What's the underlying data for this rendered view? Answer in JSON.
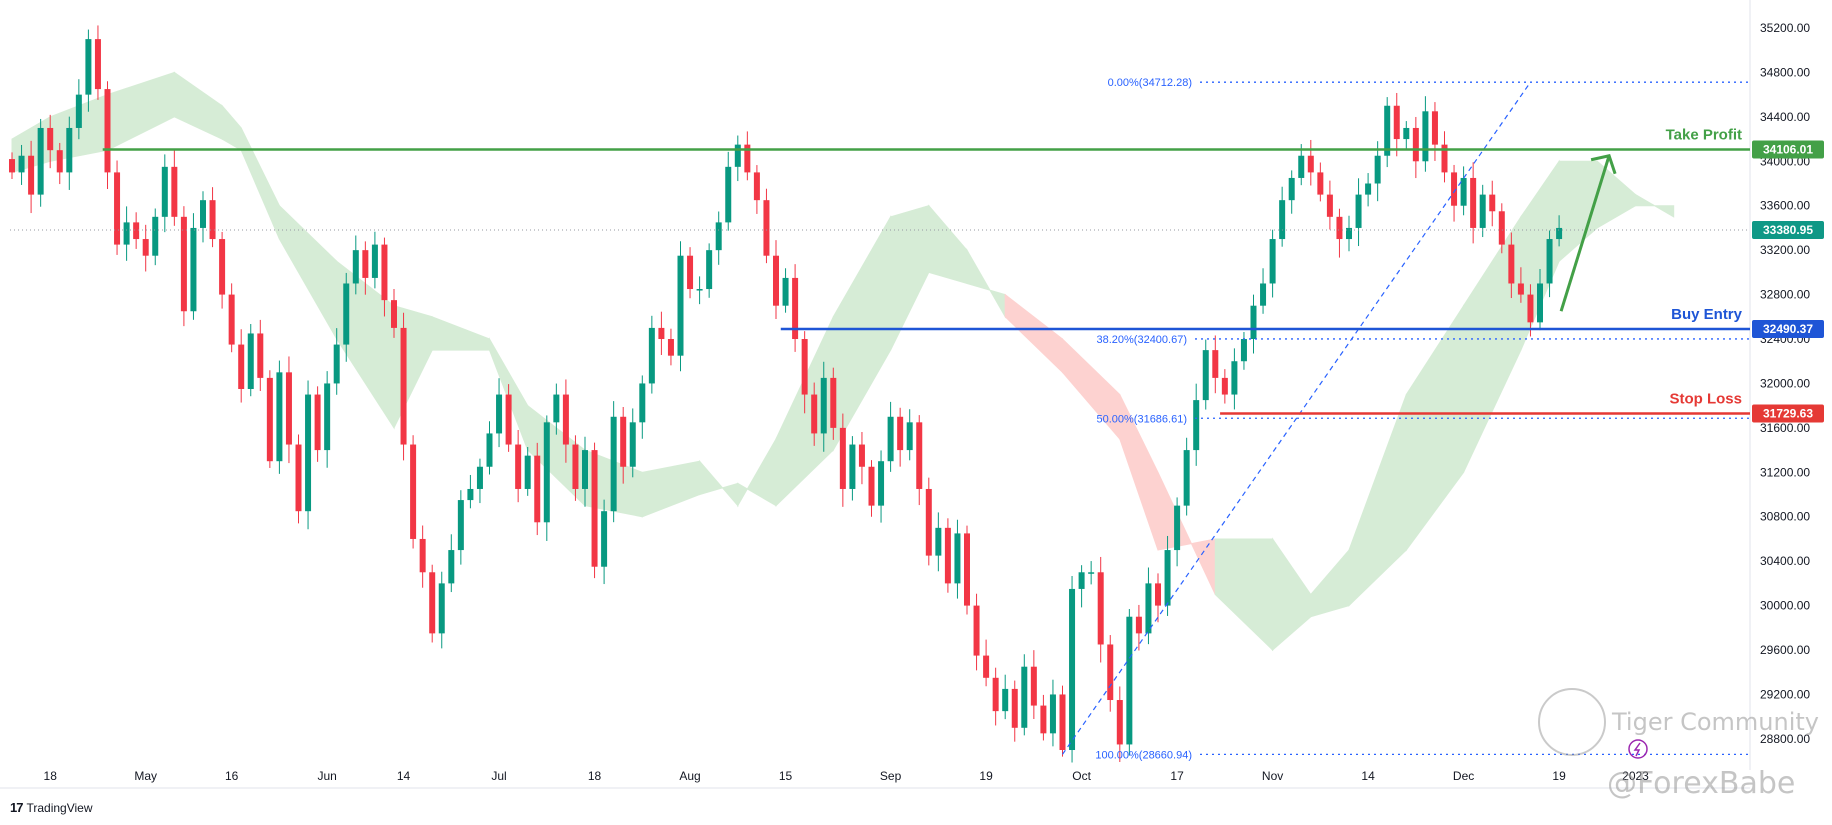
{
  "chart_data": {
    "type": "candlestick",
    "y_ticks": [
      "35200.00",
      "34800.00",
      "34400.00",
      "34000.00",
      "33600.00",
      "33200.00",
      "32800.00",
      "32400.00",
      "32000.00",
      "31600.00",
      "31200.00",
      "30800.00",
      "30400.00",
      "30000.00",
      "29600.00",
      "29200.00",
      "28800.00"
    ],
    "ylim": [
      28520,
      35380
    ],
    "x_ticks": [
      {
        "label": "18",
        "i": 4
      },
      {
        "label": "May",
        "i": 14
      },
      {
        "label": "16",
        "i": 23
      },
      {
        "label": "Jun",
        "i": 33
      },
      {
        "label": "14",
        "i": 41
      },
      {
        "label": "Jul",
        "i": 51
      },
      {
        "label": "18",
        "i": 61
      },
      {
        "label": "Aug",
        "i": 71
      },
      {
        "label": "15",
        "i": 81
      },
      {
        "label": "Sep",
        "i": 92
      },
      {
        "label": "19",
        "i": 102
      },
      {
        "label": "Oct",
        "i": 112
      },
      {
        "label": "17",
        "i": 122
      },
      {
        "label": "Nov",
        "i": 132
      },
      {
        "label": "14",
        "i": 142
      },
      {
        "label": "Dec",
        "i": 152
      },
      {
        "label": "19",
        "i": 162
      },
      {
        "label": "2023",
        "i": 170
      }
    ],
    "candles_close": [
      33900,
      34050,
      33700,
      34300,
      34100,
      33900,
      34300,
      34600,
      35100,
      34650,
      33900,
      33250,
      33450,
      33300,
      33150,
      33500,
      33950,
      33500,
      32650,
      33400,
      33650,
      33300,
      32800,
      32350,
      31950,
      32450,
      32050,
      31300,
      32100,
      31450,
      30850,
      31900,
      31400,
      32000,
      32350,
      32900,
      33200,
      32950,
      33250,
      32750,
      32500,
      31450,
      30600,
      30300,
      29750,
      30200,
      30500,
      30950,
      31050,
      31250,
      31550,
      31900,
      31450,
      31050,
      31350,
      30750,
      31650,
      31900,
      31450,
      31050,
      31400,
      30350,
      30850,
      31700,
      31250,
      31650,
      32000,
      32500,
      32400,
      32250,
      33150,
      32850,
      32850,
      33200,
      33450,
      33950,
      34150,
      33900,
      33650,
      33150,
      32700,
      32950,
      32400,
      31900,
      31550,
      32050,
      31600,
      31050,
      31450,
      31250,
      30900,
      31300,
      31700,
      31400,
      31650,
      31050,
      30450,
      30700,
      30200,
      30650,
      30000,
      29550,
      29350,
      29050,
      29250,
      28900,
      29450,
      29100,
      28850,
      29200,
      28700,
      30150,
      30300,
      30300,
      29650,
      29150,
      28750,
      29900,
      29750,
      30200,
      30000,
      30500,
      30900,
      31400,
      31850,
      32300,
      32050,
      31900,
      32200,
      32400,
      32700,
      32900,
      33300,
      33650,
      33850,
      34050,
      33900,
      33700,
      33500,
      33300,
      33400,
      33700,
      33800,
      34050,
      34500,
      34200,
      34300,
      34000,
      34450,
      34150,
      33900,
      33600,
      33850,
      33400,
      33700,
      33550,
      33250,
      32900,
      32800,
      32550,
      32900,
      33300,
      33400
    ],
    "ichimoku_cloud": [
      {
        "i": 0,
        "a": 34200,
        "b": 33900
      },
      {
        "i": 4,
        "a": 34400,
        "b": 34000
      },
      {
        "i": 10,
        "a": 34600,
        "b": 34100
      },
      {
        "i": 17,
        "a": 34800,
        "b": 34400
      },
      {
        "i": 22,
        "a": 34500,
        "b": 34200
      },
      {
        "i": 24,
        "a": 34300,
        "b": 34100
      },
      {
        "i": 28,
        "a": 33600,
        "b": 33300
      },
      {
        "i": 34,
        "a": 33100,
        "b": 32400
      },
      {
        "i": 40,
        "a": 32700,
        "b": 31600
      },
      {
        "i": 44,
        "a": 32600,
        "b": 32300
      },
      {
        "i": 50,
        "a": 32400,
        "b": 32300
      },
      {
        "i": 54,
        "a": 31800,
        "b": 31400
      },
      {
        "i": 60,
        "a": 31400,
        "b": 30900
      },
      {
        "i": 66,
        "a": 31200,
        "b": 30800
      },
      {
        "i": 72,
        "a": 31300,
        "b": 31000
      },
      {
        "i": 76,
        "a": 30900,
        "b": 31100
      },
      {
        "i": 80,
        "a": 31500,
        "b": 30900
      },
      {
        "i": 86,
        "a": 32600,
        "b": 31400
      },
      {
        "i": 92,
        "a": 33500,
        "b": 32300
      },
      {
        "i": 96,
        "a": 33600,
        "b": 33000
      },
      {
        "i": 100,
        "a": 33200,
        "b": 32900
      },
      {
        "i": 104,
        "a": 32600,
        "b": 32800
      },
      {
        "i": 110,
        "a": 32100,
        "b": 32400
      },
      {
        "i": 116,
        "a": 31500,
        "b": 31900
      },
      {
        "i": 120,
        "a": 30500,
        "b": 31200
      },
      {
        "i": 126,
        "a": 30600,
        "b": 30100
      },
      {
        "i": 132,
        "a": 30600,
        "b": 29600
      },
      {
        "i": 136,
        "a": 30100,
        "b": 29900
      },
      {
        "i": 140,
        "a": 30500,
        "b": 30000
      },
      {
        "i": 146,
        "a": 31900,
        "b": 30500
      },
      {
        "i": 152,
        "a": 32700,
        "b": 31200
      },
      {
        "i": 158,
        "a": 33500,
        "b": 32300
      },
      {
        "i": 162,
        "a": 34000,
        "b": 33100
      },
      {
        "i": 166,
        "a": 34000,
        "b": 33400
      },
      {
        "i": 170,
        "a": 33700,
        "b": 33600
      },
      {
        "i": 174,
        "a": 33500,
        "b": 33600
      }
    ],
    "price_lines": {
      "current": "33380.95",
      "take_profit": "34106.01",
      "buy_entry": "32490.37",
      "stop_loss": "31729.63"
    },
    "fibonacci": [
      {
        "label": "0.00%(34712.28)",
        "value": 34712.28
      },
      {
        "label": "38.20%(32400.67)",
        "value": 32400.67
      },
      {
        "label": "50.00%(31686.61)",
        "value": 31686.61
      },
      {
        "label": "100.00%(28660.94)",
        "value": 28660.94
      }
    ],
    "annotations": {
      "take_profit_label": "Take Profit",
      "buy_entry_label": "Buy Entry",
      "stop_loss_label": "Stop Loss"
    },
    "colors": {
      "up": "#089981",
      "down": "#f23645",
      "cloud_bull": "#d6ecd6",
      "cloud_bear": "#fdd2d0",
      "take_profit": "#43a047",
      "buy_entry": "#1e55d6",
      "stop_loss": "#e53935",
      "fib": "#2962ff",
      "current": "#0f9886"
    }
  },
  "brand": {
    "logo": "17",
    "name": "TradingView"
  },
  "watermark": {
    "community": "Tiger Community",
    "handle": "@ForexBabe"
  }
}
